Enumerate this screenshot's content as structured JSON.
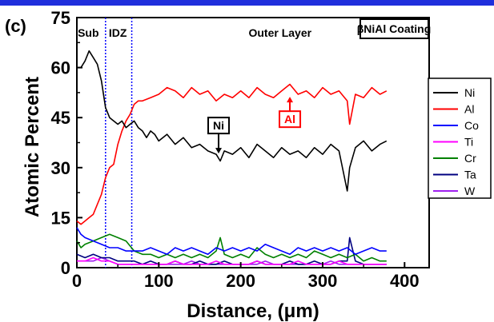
{
  "panel_label": "(c)",
  "chart_data": {
    "type": "line",
    "xlabel": "Distance, (μm)",
    "ylabel": "Atomic Percent",
    "xlim": [
      0,
      430
    ],
    "ylim": [
      0,
      75
    ],
    "x_ticks": [
      0,
      100,
      200,
      300,
      400
    ],
    "y_ticks": [
      0,
      15,
      30,
      45,
      60,
      75
    ],
    "grid": false,
    "legend_position": "right",
    "boundaries": [
      35,
      67
    ],
    "regions": [
      {
        "label": "Sub",
        "x": 14
      },
      {
        "label": "IDZ",
        "x": 50
      },
      {
        "label": "Outer Layer",
        "x": 248
      }
    ],
    "coating_label": "βNiAl Coating",
    "annotations": [
      {
        "label": "Ni",
        "series": "Ni",
        "x": 173,
        "y": 34
      },
      {
        "label": "Al",
        "series": "Al",
        "x": 260,
        "y": 51
      }
    ],
    "series": [
      {
        "name": "Ni",
        "color": "#000000",
        "x": [
          0,
          5,
          10,
          15,
          20,
          25,
          30,
          35,
          40,
          45,
          50,
          55,
          60,
          65,
          70,
          75,
          80,
          85,
          90,
          95,
          100,
          110,
          120,
          130,
          140,
          150,
          160,
          170,
          175,
          180,
          190,
          200,
          210,
          220,
          230,
          240,
          250,
          260,
          270,
          280,
          290,
          300,
          310,
          320,
          330,
          333,
          340,
          350,
          360,
          370,
          378
        ],
        "y": [
          60,
          60,
          62,
          65,
          63,
          61,
          56,
          48,
          45,
          44,
          43,
          44,
          42,
          43,
          44,
          42,
          41,
          39,
          41,
          40,
          38,
          40,
          37,
          39,
          36,
          37,
          35,
          34,
          32,
          35,
          34,
          36,
          33,
          37,
          35,
          33,
          36,
          34,
          35,
          33,
          36,
          34,
          37,
          35,
          23,
          30,
          36,
          38,
          35,
          37,
          38
        ]
      },
      {
        "name": "Al",
        "color": "#ff0000",
        "x": [
          0,
          5,
          10,
          15,
          20,
          25,
          30,
          35,
          40,
          45,
          50,
          55,
          60,
          65,
          70,
          75,
          80,
          90,
          100,
          110,
          120,
          130,
          140,
          150,
          160,
          170,
          180,
          190,
          200,
          210,
          220,
          230,
          240,
          250,
          260,
          270,
          280,
          290,
          300,
          310,
          320,
          330,
          333,
          340,
          350,
          360,
          370,
          378
        ],
        "y": [
          14,
          13,
          14,
          15,
          16,
          19,
          22,
          27,
          30,
          31,
          37,
          41,
          44,
          46,
          49,
          50,
          50,
          51,
          52,
          54,
          53,
          51,
          54,
          52,
          53,
          50,
          52,
          51,
          53,
          51,
          54,
          52,
          51,
          53,
          55,
          52,
          53,
          51,
          54,
          52,
          53,
          50,
          43,
          52,
          51,
          54,
          52,
          53
        ]
      },
      {
        "name": "Co",
        "color": "#0000ff",
        "x": [
          0,
          5,
          10,
          20,
          30,
          40,
          50,
          60,
          70,
          80,
          90,
          100,
          110,
          120,
          130,
          140,
          150,
          160,
          170,
          180,
          190,
          200,
          210,
          220,
          230,
          240,
          250,
          260,
          270,
          280,
          290,
          300,
          310,
          320,
          330,
          340,
          350,
          360,
          370,
          378
        ],
        "y": [
          12,
          10,
          9,
          8,
          7,
          6,
          6,
          5,
          5,
          5,
          6,
          5,
          4,
          6,
          5,
          6,
          5,
          4,
          6,
          5,
          6,
          5,
          6,
          5,
          7,
          6,
          5,
          4,
          6,
          5,
          6,
          5,
          6,
          5,
          6,
          4,
          5,
          6,
          5,
          5
        ]
      },
      {
        "name": "Ti",
        "color": "#ff00ff",
        "x": [
          0,
          10,
          20,
          30,
          40,
          50,
          60,
          70,
          80,
          90,
          100,
          110,
          120,
          130,
          140,
          150,
          160,
          170,
          180,
          190,
          200,
          210,
          220,
          230,
          240,
          250,
          260,
          270,
          280,
          290,
          300,
          310,
          320,
          330,
          340,
          350,
          360,
          370,
          378
        ],
        "y": [
          2,
          2,
          3,
          2,
          2,
          1,
          1,
          1,
          1,
          1,
          1,
          1,
          2,
          1,
          1,
          1,
          1,
          2,
          1,
          1,
          1,
          1,
          2,
          1,
          1,
          1,
          1,
          2,
          1,
          1,
          1,
          1,
          2,
          1,
          1,
          1,
          1,
          1,
          1
        ]
      },
      {
        "name": "Cr",
        "color": "#008000",
        "x": [
          0,
          5,
          10,
          20,
          30,
          40,
          50,
          60,
          70,
          80,
          90,
          100,
          110,
          120,
          130,
          140,
          150,
          160,
          170,
          175,
          180,
          190,
          200,
          210,
          220,
          230,
          240,
          250,
          260,
          270,
          280,
          290,
          300,
          310,
          320,
          330,
          340,
          350,
          360,
          370,
          378
        ],
        "y": [
          8,
          6,
          7,
          8,
          9,
          10,
          9,
          8,
          5,
          4,
          4,
          3,
          4,
          3,
          4,
          3,
          4,
          3,
          5,
          9,
          4,
          3,
          4,
          3,
          6,
          4,
          3,
          4,
          3,
          4,
          3,
          5,
          4,
          3,
          4,
          3,
          4,
          2,
          3,
          2,
          2
        ]
      },
      {
        "name": "Ta",
        "color": "#000080",
        "x": [
          0,
          10,
          20,
          30,
          40,
          50,
          60,
          70,
          80,
          90,
          100,
          110,
          120,
          130,
          140,
          150,
          160,
          170,
          180,
          190,
          200,
          210,
          220,
          230,
          240,
          250,
          260,
          270,
          280,
          290,
          300,
          310,
          320,
          330,
          333,
          340,
          350,
          360,
          370,
          378
        ],
        "y": [
          4,
          3,
          4,
          3,
          3,
          2,
          2,
          2,
          1,
          2,
          1,
          1,
          2,
          1,
          1,
          2,
          1,
          1,
          2,
          1,
          1,
          1,
          2,
          1,
          1,
          1,
          2,
          1,
          1,
          2,
          1,
          1,
          2,
          2,
          9,
          2,
          1,
          1,
          1,
          1
        ]
      },
      {
        "name": "W",
        "color": "#a020f0",
        "x": [
          0,
          10,
          20,
          30,
          40,
          50,
          60,
          70,
          80,
          90,
          100,
          110,
          120,
          130,
          140,
          150,
          160,
          170,
          180,
          190,
          200,
          210,
          220,
          230,
          240,
          250,
          260,
          270,
          280,
          290,
          300,
          310,
          320,
          330,
          340,
          350,
          360,
          370,
          378
        ],
        "y": [
          2,
          2,
          2,
          3,
          2,
          1,
          1,
          1,
          1,
          1,
          1,
          1,
          1,
          1,
          2,
          1,
          1,
          1,
          1,
          1,
          1,
          1,
          1,
          2,
          1,
          1,
          1,
          1,
          1,
          1,
          1,
          2,
          1,
          1,
          1,
          1,
          1,
          1,
          1
        ]
      }
    ]
  }
}
